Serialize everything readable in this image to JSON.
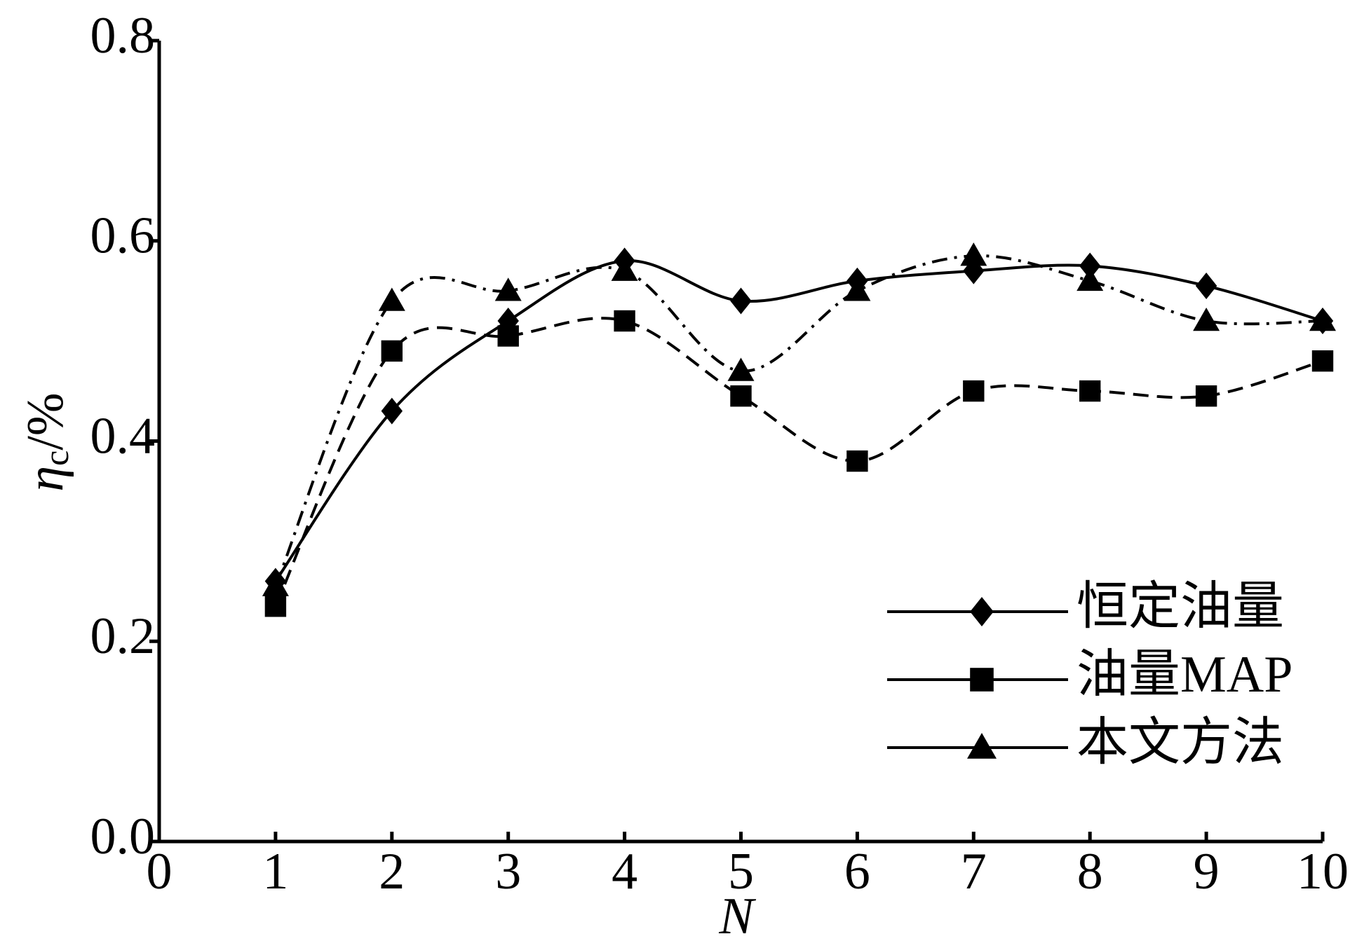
{
  "chart_data": {
    "type": "line",
    "xlabel": "N",
    "ylabel": [
      "η",
      "c",
      "/%"
    ],
    "x": [
      1,
      2,
      3,
      4,
      5,
      6,
      7,
      8,
      9,
      10
    ],
    "series": [
      {
        "name": "恒定油量",
        "color": "#000000",
        "marker": "diamond",
        "dash": "solid",
        "values": [
          0.26,
          0.43,
          0.52,
          0.58,
          0.54,
          0.56,
          0.57,
          0.575,
          0.555,
          0.52
        ]
      },
      {
        "name": "油量MAP",
        "color": "#000000",
        "marker": "square",
        "dash": "dashed",
        "values": [
          0.235,
          0.49,
          0.505,
          0.52,
          0.445,
          0.38,
          0.45,
          0.45,
          0.445,
          0.48
        ]
      },
      {
        "name": "本文方法",
        "color": "#000000",
        "marker": "triangle",
        "dash": "dashdot",
        "values": [
          0.255,
          0.54,
          0.55,
          0.57,
          0.47,
          0.55,
          0.585,
          0.56,
          0.52,
          0.52
        ]
      }
    ],
    "xlim": [
      0,
      10
    ],
    "xticks": [
      0,
      1,
      2,
      3,
      4,
      5,
      6,
      7,
      8,
      9,
      10
    ],
    "ylim": [
      0,
      0.8
    ],
    "yticks": [
      {
        "value": 0,
        "label": "0.0"
      },
      0.2,
      0.4,
      0.6,
      0.8
    ],
    "grid": false,
    "legend": "lower right"
  }
}
